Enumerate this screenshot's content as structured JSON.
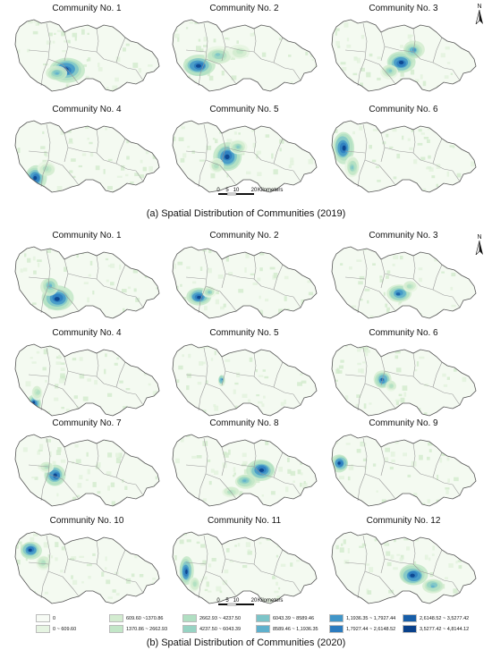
{
  "section_a": {
    "caption": "(a) Spatial Distribution of Communities (2019)",
    "panels": [
      {
        "title": "Community No. 1"
      },
      {
        "title": "Community No. 2"
      },
      {
        "title": "Community No. 3"
      },
      {
        "title": "Community No. 4"
      },
      {
        "title": "Community No. 5"
      },
      {
        "title": "Community No. 6"
      }
    ],
    "north_label": "N",
    "scale": {
      "ticks": [
        "0",
        "5",
        "10",
        "20"
      ],
      "unit": "Kilometers"
    }
  },
  "section_b": {
    "caption": "(b) Spatial Distribution of Communities (2020)",
    "panels": [
      {
        "title": "Community No. 1"
      },
      {
        "title": "Community No. 2"
      },
      {
        "title": "Community No. 3"
      },
      {
        "title": "Community No. 4"
      },
      {
        "title": "Community No. 5"
      },
      {
        "title": "Community No. 6"
      },
      {
        "title": "Community No. 7"
      },
      {
        "title": "Community No. 8"
      },
      {
        "title": "Community No. 9"
      },
      {
        "title": "Community No. 10"
      },
      {
        "title": "Community No. 11"
      },
      {
        "title": "Community No. 12"
      }
    ],
    "north_label": "N",
    "scale": {
      "ticks": [
        "0",
        "5",
        "10",
        "20"
      ],
      "unit": "Kilometers"
    }
  },
  "legend": {
    "items": [
      {
        "label": "0",
        "color": "#f7fbf5"
      },
      {
        "label": "0 ~ 609.60",
        "color": "#e6f4e2"
      },
      {
        "label": "609.60 ~1370.86",
        "color": "#d3ecd0"
      },
      {
        "label": "1370.86 ~ 2662.93",
        "color": "#c2e6c7"
      },
      {
        "label": "2662.93 ~ 4237.50",
        "color": "#b0dfc2"
      },
      {
        "label": "4237.50 ~ 6043.39",
        "color": "#97d3c3"
      },
      {
        "label": "6043.39 ~ 8589.46",
        "color": "#7cc4c8"
      },
      {
        "label": "8589.46 ~ 1,1936.35",
        "color": "#5fb0cc"
      },
      {
        "label": "1,1936.35 ~ 1,7927.44",
        "color": "#4196c8"
      },
      {
        "label": "1,7927.44 ~ 2,6148.52",
        "color": "#2b7bbf"
      },
      {
        "label": "2,6148.52 ~ 3,5277.42",
        "color": "#175ea8"
      },
      {
        "label": "3,5277.42 ~ 4,8144.12",
        "color": "#08408a"
      }
    ]
  }
}
